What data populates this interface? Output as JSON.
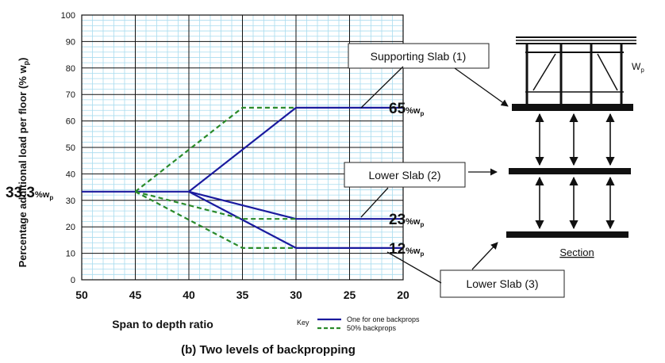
{
  "chart_data": {
    "type": "line",
    "title": "(b)  Two levels of backpropping",
    "xlabel": "Span to depth ratio",
    "ylabel": "Percentage additional load per floor (% w",
    "ylabel_sub": "p",
    "ylabel_close": ")",
    "xlim": [
      50,
      20
    ],
    "ylim": [
      0,
      100
    ],
    "x_ticks": [
      "50",
      "45",
      "40",
      "35",
      "30",
      "25",
      "20"
    ],
    "y_ticks": [
      "0",
      "10",
      "20",
      "30",
      "40",
      "50",
      "60",
      "70",
      "80",
      "90",
      "100"
    ],
    "grid": true,
    "series": [
      {
        "name": "One for one backprops",
        "color": "#1a1a9e",
        "dash": "solid",
        "lines": [
          [
            [
              50,
              33.3
            ],
            [
              40,
              33.3
            ],
            [
              30,
              65
            ],
            [
              20,
              65
            ]
          ],
          [
            [
              40,
              33.3
            ],
            [
              30,
              23
            ],
            [
              20,
              23
            ]
          ],
          [
            [
              40,
              33.3
            ],
            [
              30,
              12
            ],
            [
              20,
              12
            ]
          ]
        ]
      },
      {
        "name": "50% backprops",
        "color": "#2a8a2a",
        "dash": "dashed",
        "lines": [
          [
            [
              45,
              33.3
            ],
            [
              35,
              65
            ],
            [
              30,
              65
            ]
          ],
          [
            [
              45,
              33.3
            ],
            [
              35,
              23
            ],
            [
              30,
              23
            ]
          ],
          [
            [
              45,
              33.3
            ],
            [
              35,
              12
            ],
            [
              30,
              12
            ]
          ]
        ]
      }
    ],
    "annotations": [
      {
        "main": "33.3",
        "unit": "%w",
        "sub": "p",
        "x": 50,
        "y": 33.3
      },
      {
        "main": "65",
        "unit": "%w",
        "sub": "p",
        "x": 20,
        "y": 65
      },
      {
        "main": "23",
        "unit": "%w",
        "sub": "p",
        "x": 20,
        "y": 23
      },
      {
        "main": "12",
        "unit": "%w",
        "sub": "p",
        "x": 20,
        "y": 12
      }
    ],
    "legend": {
      "title": "Key",
      "placement": "bottom-right",
      "entries": [
        "One for one backprops",
        "50% backprops"
      ]
    }
  },
  "diagram": {
    "slab1_label": "Supporting Slab (1)",
    "slab2_label": "Lower Slab (2)",
    "slab3_label": "Lower Slab (3)",
    "load_label": "W",
    "load_label_sub": "p",
    "section_label": "Section"
  }
}
